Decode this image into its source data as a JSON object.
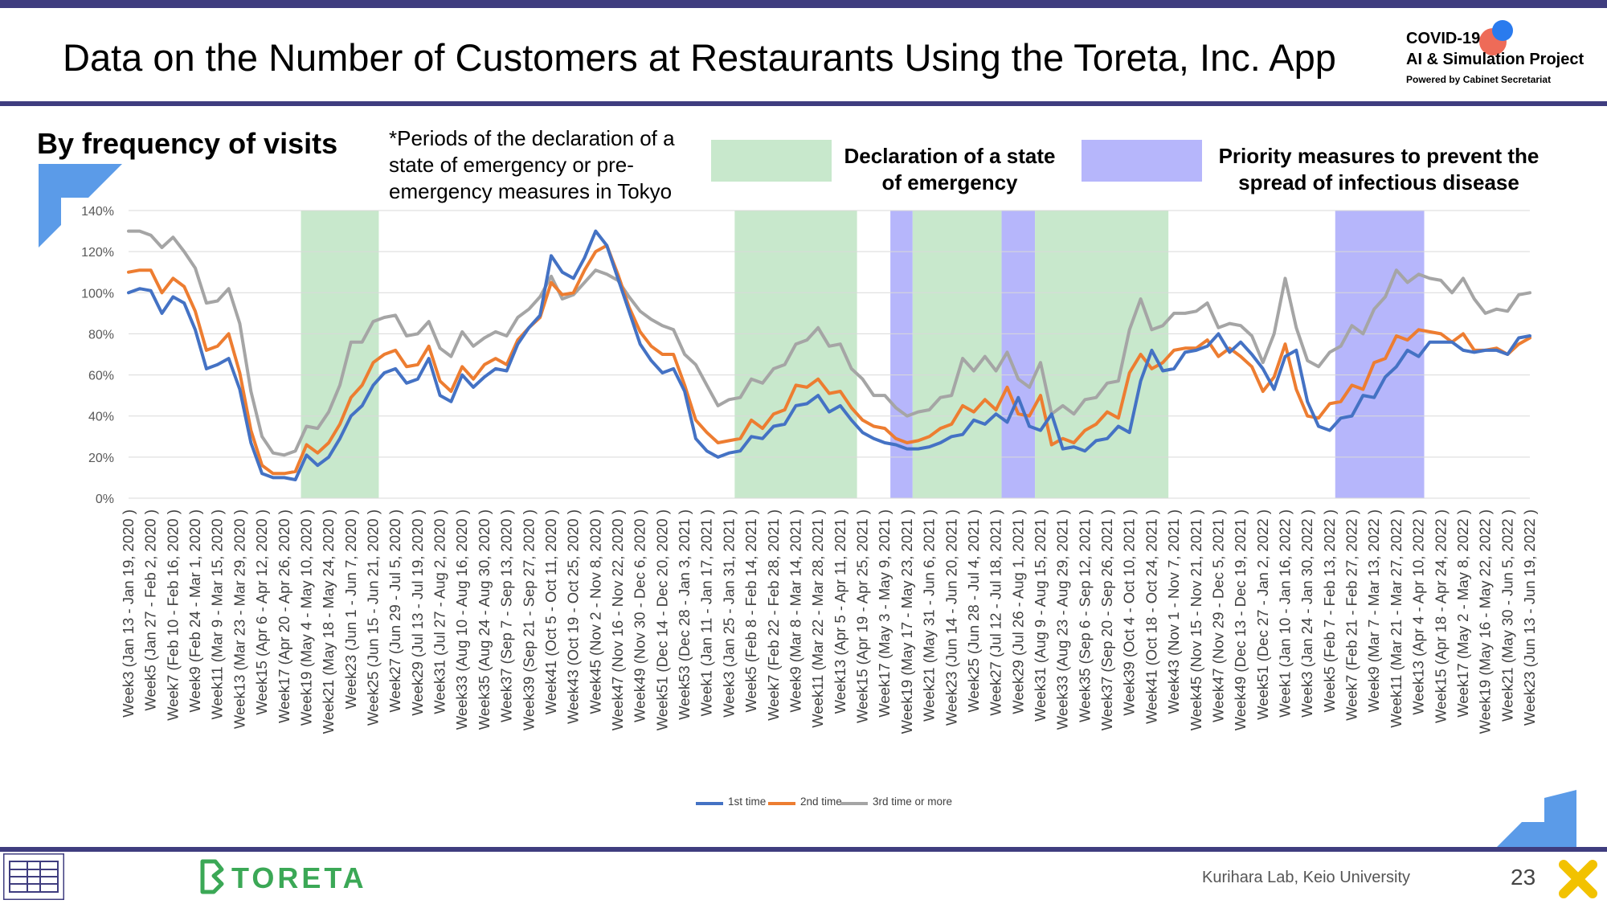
{
  "header": {
    "title": "Data on the Number of Customers at Restaurants Using the Toreta, Inc. App",
    "logo_line1": "COVID-19",
    "logo_line2": "AI & Simulation Project",
    "logo_line3": "Powered by Cabinet Secretariat"
  },
  "section_title": "By frequency of visits",
  "note": "*Periods of the declaration of a state of emergency or pre-emergency measures in Tokyo",
  "legend_bands": {
    "emergency": "Declaration of a state of emergency",
    "priority": "Priority measures to prevent the spread of infectious disease"
  },
  "footer": {
    "lab": "Kurihara Lab, Keio University",
    "page": "23",
    "brand": "TORETA"
  },
  "colors": {
    "first": "#4472c4",
    "second": "#ed7d31",
    "third": "#a5a5a5",
    "emergency_band": "#c8e8cc",
    "priority_band": "#b6b6fb",
    "rule": "#3f3d7f"
  },
  "chart_data": {
    "type": "line",
    "ylim": [
      0,
      140
    ],
    "yticks": [
      "0%",
      "20%",
      "40%",
      "60%",
      "80%",
      "100%",
      "120%",
      "140%"
    ],
    "grid": true,
    "legend_position": "bottom",
    "labeled_categories": [
      "Week3 (Jan 13 - Jan 19, 2020 )",
      "Week5 (Jan 27 - Feb 2, 2020 )",
      "Week7 (Feb 10 - Feb 16, 2020 )",
      "Week9 (Feb 24 - Mar 1, 2020 )",
      "Week11 (Mar 9 - Mar 15, 2020 )",
      "Week13 (Mar 23 - Mar 29, 2020 )",
      "Week15 (Apr 6 - Apr 12, 2020 )",
      "Week17 (Apr 20 - Apr 26, 2020 )",
      "Week19 (May 4 - May 10, 2020 )",
      "Week21 (May 18 - May 24, 2020 )",
      "Week23 (Jun 1 - Jun 7, 2020 )",
      "Week25 (Jun 15 - Jun 21, 2020 )",
      "Week27 (Jun 29 - Jul 5, 2020 )",
      "Week29 (Jul 13 - Jul 19, 2020 )",
      "Week31 (Jul 27 - Aug 2, 2020 )",
      "Week33 (Aug 10 - Aug 16, 2020 )",
      "Week35 (Aug 24 - Aug 30, 2020 )",
      "Week37 (Sep 7 - Sep 13, 2020 )",
      "Week39 (Sep 21 - Sep 27, 2020 )",
      "Week41 (Oct 5 - Oct 11, 2020 )",
      "Week43 (Oct 19 - Oct 25, 2020 )",
      "Week45 (Nov 2 - Nov 8, 2020 )",
      "Week47 (Nov 16 - Nov 22, 2020 )",
      "Week49 (Nov 30 - Dec 6, 2020 )",
      "Week51 (Dec 14 - Dec 20, 2020 )",
      "Week53 (Dec 28 - Jan 3, 2021 )",
      "Week1 (Jan 11 - Jan 17, 2021 )",
      "Week3 (Jan 25 - Jan 31, 2021 )",
      "Week5 (Feb 8 - Feb 14, 2021 )",
      "Week7 (Feb 22 - Feb 28, 2021 )",
      "Week9 (Mar 8 - Mar 14, 2021 )",
      "Week11 (Mar 22 - Mar 28, 2021 )",
      "Week13 (Apr 5 - Apr 11, 2021 )",
      "Week15 (Apr 19 - Apr 25, 2021 )",
      "Week17 (May 3 - May 9, 2021 )",
      "Week19 (May 17 - May 23, 2021 )",
      "Week21 (May 31 - Jun 6, 2021 )",
      "Week23 (Jun 14 - Jun 20, 2021 )",
      "Week25 (Jun 28 - Jul 4, 2021 )",
      "Week27 (Jul 12 - Jul 18, 2021 )",
      "Week29 (Jul 26 - Aug 1, 2021 )",
      "Week31 (Aug 9 - Aug 15, 2021 )",
      "Week33 (Aug 23 - Aug 29, 2021 )",
      "Week35 (Sep 6 - Sep 12, 2021 )",
      "Week37 (Sep 20 - Sep 26, 2021 )",
      "Week39 (Oct 4 - Oct 10, 2021 )",
      "Week41 (Oct 18 - Oct 24, 2021 )",
      "Week43 (Nov 1 - Nov 7, 2021 )",
      "Week45 (Nov 15 - Nov 21, 2021 )",
      "Week47 (Nov 29 - Dec 5, 2021 )",
      "Week49 (Dec 13 - Dec 19, 2021 )",
      "Week51 (Dec 27 - Jan 2, 2022 )",
      "Week1 (Jan 10 - Jan 16, 2022 )",
      "Week3 (Jan 24 - Jan 30, 2022 )",
      "Week5 (Feb 7 - Feb 13, 2022 )",
      "Week7 (Feb 21 - Feb 27, 2022 )",
      "Week9 (Mar 7 - Mar 13, 2022 )",
      "Week11 (Mar 21 - Mar 27, 2022 )",
      "Week13 (Apr 4 - Apr 10, 2022 )",
      "Week15 (Apr 18 - Apr 24, 2022 )",
      "Week17 (May 2 - May 8, 2022 )",
      "Week19 (May 16 - May 22, 2022 )",
      "Week21 (May 30 - Jun 5, 2022 )",
      "Week23 (Jun 13 - Jun 19, 2022 )"
    ],
    "label_every": 2,
    "bands": [
      {
        "kind": "emergency",
        "from": 15.5,
        "to": 22.5
      },
      {
        "kind": "emergency",
        "from": 54.5,
        "to": 65.5
      },
      {
        "kind": "priority",
        "from": 68.5,
        "to": 70.5
      },
      {
        "kind": "emergency",
        "from": 70.5,
        "to": 78.5
      },
      {
        "kind": "priority",
        "from": 78.5,
        "to": 81.5
      },
      {
        "kind": "emergency",
        "from": 81.5,
        "to": 93.5
      },
      {
        "kind": "priority",
        "from": 108.5,
        "to": 116.5
      }
    ],
    "series": [
      {
        "name": "1st time",
        "color": "#4472c4",
        "values": [
          100,
          102,
          101,
          90,
          98,
          95,
          82,
          63,
          65,
          68,
          53,
          27,
          12,
          10,
          10,
          9,
          21,
          16,
          20,
          29,
          40,
          45,
          55,
          61,
          63,
          56,
          58,
          68,
          50,
          47,
          60,
          54,
          59,
          63,
          62,
          75,
          83,
          89,
          118,
          110,
          107,
          117,
          130,
          123,
          107,
          91,
          75,
          67,
          61,
          63,
          52,
          29,
          23,
          20,
          22,
          23,
          30,
          29,
          35,
          36,
          45,
          46,
          50,
          42,
          45,
          38,
          32,
          29,
          27,
          26,
          24,
          24,
          25,
          27,
          30,
          31,
          38,
          36,
          41,
          37,
          49,
          35,
          33,
          41,
          24,
          25,
          23,
          28,
          29,
          35,
          32,
          57,
          72,
          62,
          63,
          71,
          72,
          74,
          80,
          71,
          76,
          70,
          63,
          53,
          69,
          72,
          47,
          35,
          33,
          39,
          40,
          50,
          49,
          59,
          64,
          72,
          69,
          76,
          76,
          76,
          72,
          71,
          72,
          72,
          70,
          78,
          79
        ]
      },
      {
        "name": "2nd time",
        "color": "#ed7d31",
        "values": [
          110,
          111,
          111,
          100,
          107,
          103,
          91,
          72,
          74,
          80,
          61,
          33,
          16,
          12,
          12,
          13,
          26,
          22,
          27,
          36,
          49,
          55,
          66,
          70,
          72,
          64,
          65,
          74,
          57,
          52,
          64,
          58,
          65,
          68,
          65,
          77,
          83,
          88,
          105,
          99,
          100,
          111,
          120,
          123,
          109,
          93,
          81,
          74,
          70,
          70,
          55,
          38,
          32,
          27,
          28,
          29,
          38,
          34,
          41,
          43,
          55,
          54,
          58,
          51,
          52,
          44,
          38,
          35,
          34,
          29,
          27,
          28,
          30,
          34,
          36,
          45,
          42,
          48,
          43,
          54,
          41,
          40,
          50,
          26,
          29,
          27,
          33,
          36,
          42,
          39,
          61,
          70,
          63,
          66,
          72,
          73,
          73,
          77,
          69,
          73,
          69,
          64,
          52,
          59,
          75,
          53,
          40,
          39,
          46,
          47,
          55,
          53,
          66,
          68,
          79,
          77,
          82,
          81,
          80,
          76,
          80,
          72,
          72,
          73,
          70,
          75,
          78
        ]
      },
      {
        "name": "3rd time or more",
        "color": "#a5a5a5",
        "values": [
          130,
          130,
          128,
          122,
          127,
          120,
          112,
          95,
          96,
          102,
          85,
          52,
          30,
          22,
          21,
          23,
          35,
          34,
          42,
          55,
          76,
          76,
          86,
          88,
          89,
          79,
          80,
          86,
          73,
          69,
          81,
          74,
          78,
          81,
          79,
          88,
          92,
          98,
          108,
          97,
          99,
          105,
          111,
          109,
          106,
          98,
          91,
          87,
          84,
          82,
          70,
          65,
          55,
          45,
          48,
          49,
          58,
          56,
          63,
          65,
          75,
          77,
          83,
          74,
          75,
          63,
          58,
          50,
          50,
          44,
          40,
          42,
          43,
          49,
          50,
          68,
          62,
          69,
          62,
          71,
          58,
          54,
          66,
          41,
          45,
          41,
          48,
          49,
          56,
          57,
          82,
          97,
          82,
          84,
          90,
          90,
          91,
          95,
          83,
          85,
          84,
          79,
          66,
          80,
          107,
          83,
          67,
          64,
          71,
          74,
          84,
          80,
          92,
          98,
          111,
          105,
          109,
          107,
          106,
          100,
          107,
          97,
          90,
          92,
          91,
          99,
          100
        ]
      }
    ]
  }
}
